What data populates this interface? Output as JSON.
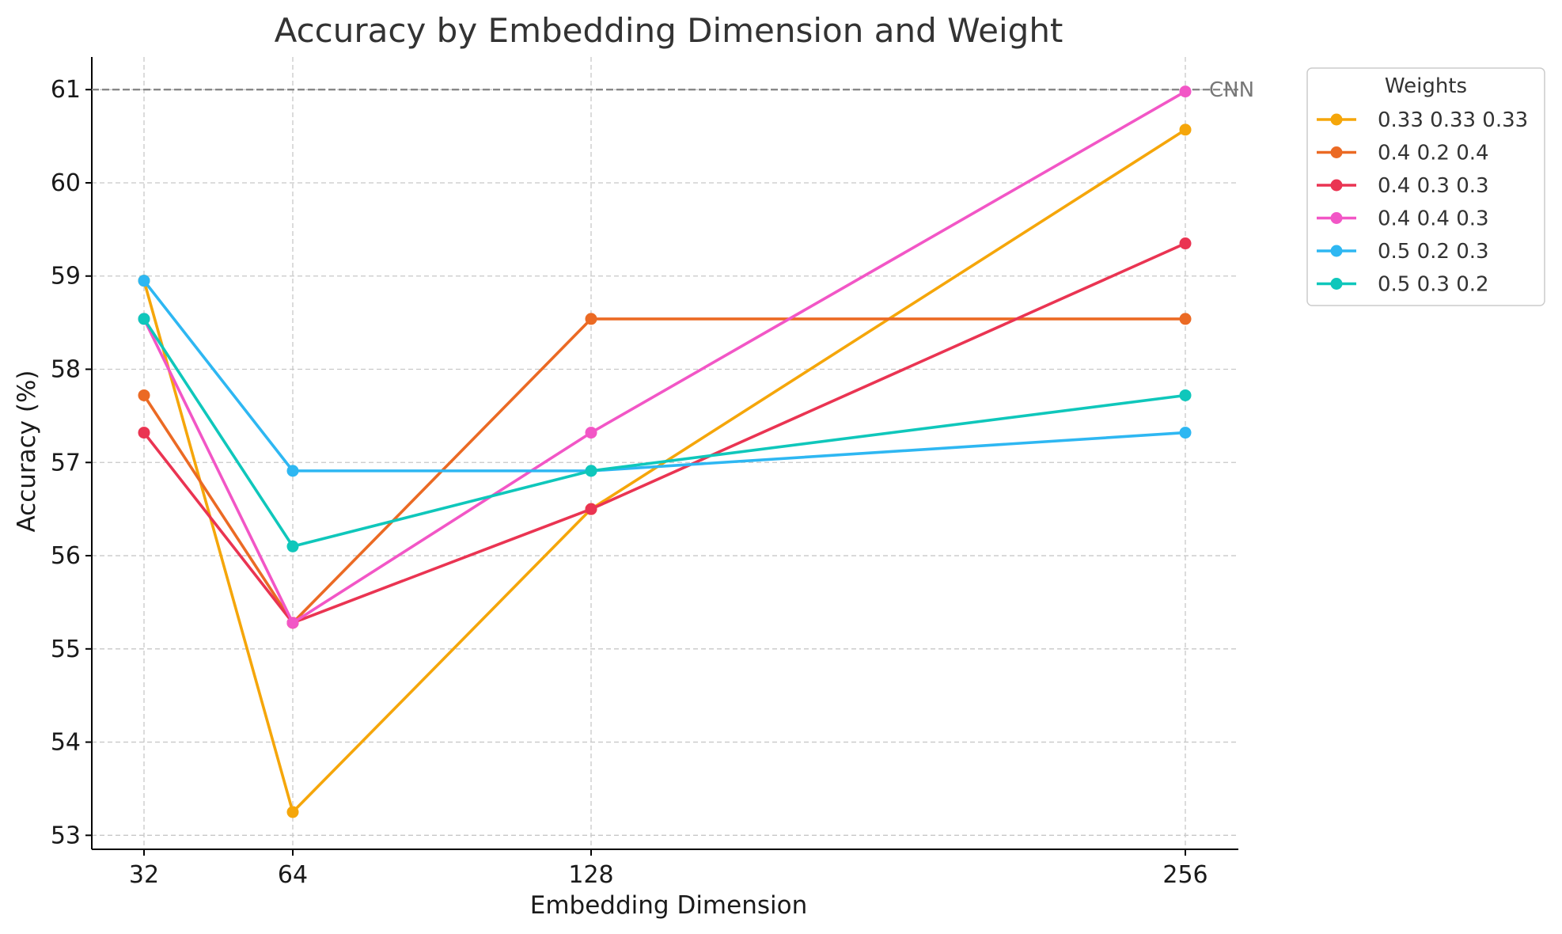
{
  "chart_data": {
    "type": "line",
    "title": "Accuracy by Embedding Dimension and Weight",
    "xlabel": "Embedding Dimension",
    "ylabel": "Accuracy (%)",
    "x": [
      32,
      64,
      128,
      256
    ],
    "x_tick_labels": [
      "32",
      "64",
      "128",
      "256"
    ],
    "y_ticks": [
      53,
      54,
      55,
      56,
      57,
      58,
      59,
      60,
      61
    ],
    "ylim": [
      52.85,
      61.35
    ],
    "grid": true,
    "legend": {
      "title": "Weights",
      "position": "outside-top-right"
    },
    "reference_line": {
      "label": "CNN",
      "value": 61.0,
      "color": "#888888",
      "style": "dashed"
    },
    "series": [
      {
        "name": "0.33 0.33 0.33",
        "color": "#F5A60A",
        "values": [
          58.95,
          53.25,
          56.5,
          60.57
        ]
      },
      {
        "name": "0.4 0.2 0.4",
        "color": "#EB6A24",
        "values": [
          57.72,
          55.28,
          58.54,
          58.54
        ]
      },
      {
        "name": "0.4 0.3 0.3",
        "color": "#EA3452",
        "values": [
          57.32,
          55.28,
          56.5,
          59.35
        ]
      },
      {
        "name": "0.4 0.4 0.3",
        "color": "#F256C6",
        "values": [
          58.54,
          55.28,
          57.32,
          60.98
        ]
      },
      {
        "name": "0.5 0.2 0.3",
        "color": "#2EB7F2",
        "values": [
          58.95,
          56.91,
          56.91,
          57.32
        ]
      },
      {
        "name": "0.5 0.3 0.2",
        "color": "#0FC7BB",
        "values": [
          58.54,
          56.1,
          56.91,
          57.72
        ]
      }
    ]
  }
}
